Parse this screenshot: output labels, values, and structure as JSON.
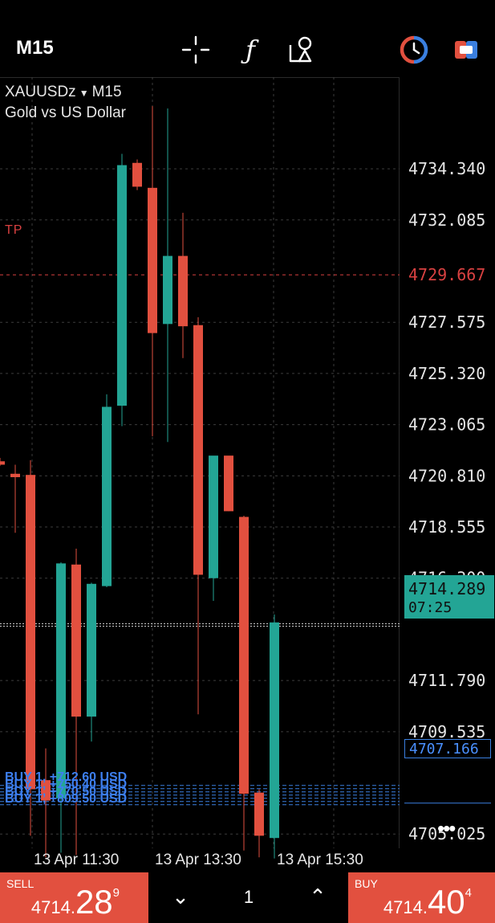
{
  "toolbar": {
    "timeframe": "M15",
    "icons": [
      "crosshair-icon",
      "function-icon",
      "objects-icon",
      "quick-trade-icon",
      "toggle-icon"
    ],
    "function_glyph": "ƒ"
  },
  "chart": {
    "symbol": "XAUUSDz",
    "symbol_arrow": "▼",
    "symbol_timeframe": "M15",
    "description": "Gold vs US Dollar",
    "tp_label": "TP",
    "tp_price": "4729.667",
    "current_price": "4714.289",
    "countdown": "07:25",
    "buy_level_price": "4707.166",
    "buy_labels": [
      "BUY 1, +712.60 USD",
      "BUY 1, +750.40 USD",
      "BUY 1, +770.50 USD",
      "BUY 1, +809.50 USD"
    ],
    "more_icon": "•••",
    "colors": {
      "bull": "#23a595",
      "bear": "#e2503f",
      "tp": "#d94141",
      "buy_lines": "#3a7fe0"
    }
  },
  "chart_data": {
    "type": "candlestick",
    "y_ticks": [
      "4734.340",
      "4732.085",
      "4727.575",
      "4725.320",
      "4723.065",
      "4720.810",
      "4718.555",
      "4716.300",
      "4711.790",
      "4709.535",
      "4705.025"
    ],
    "x_ticks": [
      "13 Apr 11:30",
      "13 Apr 13:30",
      "13 Apr 15:30"
    ],
    "ylim": [
      4703.8,
      4736.5
    ],
    "candles": [
      {
        "o": 4721.45,
        "h": 4721.6,
        "l": 4721.25,
        "c": 4721.3
      },
      {
        "o": 4720.9,
        "h": 4721.3,
        "l": 4718.3,
        "c": 4720.75
      },
      {
        "o": 4720.85,
        "h": 4721.5,
        "l": 4704.95,
        "c": 4707.0
      },
      {
        "o": 4707.4,
        "h": 4708.8,
        "l": 4704.0,
        "c": 4706.5
      },
      {
        "o": 4706.6,
        "h": 4717.0,
        "l": 4704.2,
        "c": 4716.95
      },
      {
        "o": 4716.9,
        "h": 4717.6,
        "l": 4704.1,
        "c": 4710.2
      },
      {
        "o": 4710.2,
        "h": 4716.1,
        "l": 4709.1,
        "c": 4716.05
      },
      {
        "o": 4715.95,
        "h": 4724.4,
        "l": 4715.9,
        "c": 4723.85
      },
      {
        "o": 4723.9,
        "h": 4735.0,
        "l": 4723.0,
        "c": 4734.5
      },
      {
        "o": 4734.6,
        "h": 4734.75,
        "l": 4733.4,
        "c": 4733.55
      },
      {
        "o": 4733.5,
        "h": 4737.1,
        "l": 4722.55,
        "c": 4727.1
      },
      {
        "o": 4727.5,
        "h": 4737.0,
        "l": 4722.3,
        "c": 4730.5
      },
      {
        "o": 4730.5,
        "h": 4732.4,
        "l": 4726.0,
        "c": 4727.4
      },
      {
        "o": 4727.45,
        "h": 4727.8,
        "l": 4710.3,
        "c": 4716.45
      },
      {
        "o": 4716.3,
        "h": 4721.5,
        "l": 4715.3,
        "c": 4721.7
      },
      {
        "o": 4721.7,
        "h": 4721.6,
        "l": 4719.25,
        "c": 4719.25
      },
      {
        "o": 4719.0,
        "h": 4719.05,
        "l": 4704.3,
        "c": 4706.8
      },
      {
        "o": 4706.85,
        "h": 4707.0,
        "l": 4704.0,
        "c": 4704.95
      },
      {
        "o": 4704.85,
        "h": 4714.7,
        "l": 4703.95,
        "c": 4714.35
      }
    ]
  },
  "bottom_bar": {
    "sell_label": "SELL",
    "sell_price_small": "4714.",
    "sell_price_big": "28",
    "sell_price_sup": "9",
    "buy_label": "BUY",
    "buy_price_small": "4714.",
    "buy_price_big": "40",
    "buy_price_sup": "4",
    "volume": "1",
    "down_glyph": "⌄",
    "up_glyph": "⌃"
  }
}
